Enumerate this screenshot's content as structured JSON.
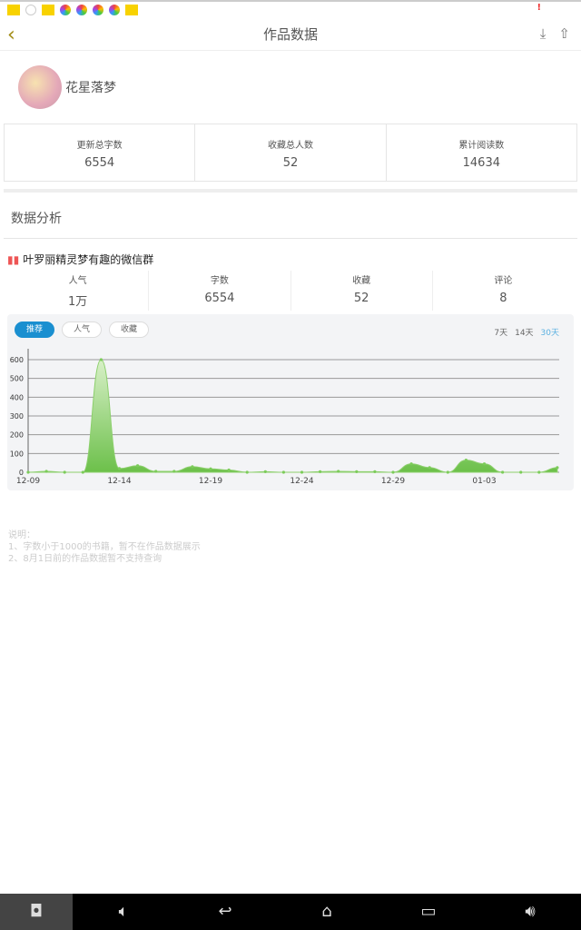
{
  "status_icons": [
    "app-yellow",
    "face",
    "app-yellow",
    "ball",
    "ball",
    "ball",
    "ball",
    "app-yellow"
  ],
  "header": {
    "title": "作品数据",
    "back": "‹"
  },
  "user": {
    "name": "花星落梦"
  },
  "totals": [
    {
      "label": "更新总字数",
      "value": "6554"
    },
    {
      "label": "收藏总人数",
      "value": "52"
    },
    {
      "label": "累计阅读数",
      "value": "14634"
    }
  ],
  "section_title": "数据分析",
  "book": {
    "title": "叶罗丽精灵梦有趣的微信群",
    "stats": [
      {
        "label": "人气",
        "value": "1万"
      },
      {
        "label": "字数",
        "value": "6554"
      },
      {
        "label": "收藏",
        "value": "52"
      },
      {
        "label": "评论",
        "value": "8"
      }
    ]
  },
  "chart_tabs": [
    "推荐",
    "人气",
    "收藏"
  ],
  "ranges": [
    "7天",
    "14天",
    "30天"
  ],
  "chart_data": {
    "type": "area",
    "active_tab": "推荐",
    "active_range": "30天",
    "x": [
      "12-09",
      "12-10",
      "12-11",
      "12-12",
      "12-13",
      "12-14",
      "12-15",
      "12-16",
      "12-17",
      "12-18",
      "12-19",
      "12-20",
      "12-21",
      "12-22",
      "12-23",
      "12-24",
      "12-25",
      "12-26",
      "12-27",
      "12-28",
      "12-29",
      "12-30",
      "12-31",
      "01-01",
      "01-02",
      "01-03",
      "01-04",
      "01-05",
      "01-06",
      "01-07"
    ],
    "values": [
      0,
      5,
      0,
      0,
      600,
      20,
      35,
      5,
      5,
      30,
      18,
      12,
      0,
      3,
      0,
      0,
      3,
      5,
      3,
      3,
      0,
      45,
      25,
      0,
      65,
      45,
      0,
      0,
      0,
      25
    ],
    "xticks": [
      "12-09",
      "12-14",
      "12-19",
      "12-24",
      "12-29",
      "01-03"
    ],
    "yticks": [
      0,
      100,
      200,
      300,
      400,
      500,
      600
    ],
    "ylim": [
      0,
      600
    ],
    "grid": true,
    "color": "#7ccc5a"
  },
  "notes": [
    "说明：",
    "1、字数小于1000的书籍，暂不在作品数据展示",
    "2、8月1日前的作品数据暂不支持查询"
  ],
  "nav": [
    "screenshot",
    "volume-down",
    "back",
    "home",
    "recents",
    "volume-up"
  ]
}
